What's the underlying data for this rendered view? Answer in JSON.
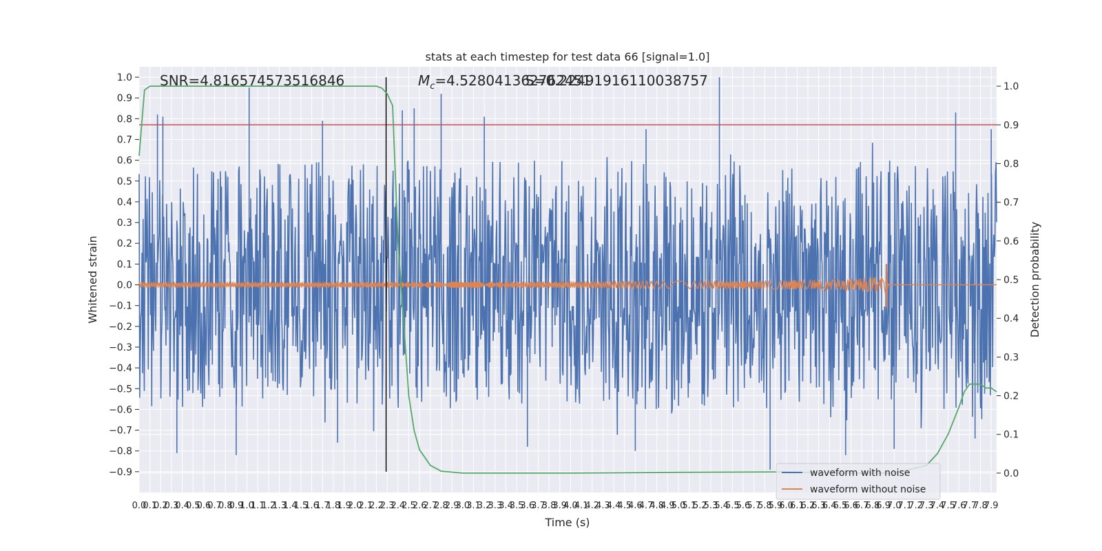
{
  "chart_data": {
    "type": "line",
    "title": "stats at each timestep for test data 66 [signal=1.0]",
    "xlabel": "Time (s)",
    "ylabel_left": "Whitened strain",
    "ylabel_right": "Detection probability",
    "xlim": [
      0.0,
      7.95
    ],
    "ylim_left": [
      -1.0,
      1.05
    ],
    "ylim_right": [
      -0.05,
      1.05
    ],
    "grid": true,
    "legend_position": "bottom-right",
    "x_ticks": [
      "0.0",
      "0.1",
      "0.2",
      "0.3",
      "0.4",
      "0.5",
      "0.6",
      "0.7",
      "0.8",
      "0.9",
      "1.0",
      "1.1",
      "1.2",
      "1.3",
      "1.4",
      "1.5",
      "1.6",
      "1.7",
      "1.8",
      "1.9",
      "2.0",
      "2.1",
      "2.2",
      "2.3",
      "2.4",
      "2.5",
      "2.6",
      "2.7",
      "2.8",
      "2.9",
      "3.0",
      "3.1",
      "3.2",
      "3.3",
      "3.4",
      "3.5",
      "3.6",
      "3.7",
      "3.8",
      "3.9",
      "4.0",
      "4.1",
      "4.2",
      "4.3",
      "4.4",
      "4.5",
      "4.6",
      "4.7",
      "4.8",
      "4.9",
      "5.0",
      "5.1",
      "5.2",
      "5.3",
      "5.4",
      "5.5",
      "5.6",
      "5.7",
      "5.8",
      "5.9",
      "6.0",
      "6.1",
      "6.2",
      "6.3",
      "6.4",
      "6.5",
      "6.6",
      "6.7",
      "6.8",
      "6.9",
      "7.0",
      "7.1",
      "7.2",
      "7.3",
      "7.4",
      "7.5",
      "7.6",
      "7.7",
      "7.8",
      "7.9"
    ],
    "y_ticks_left": [
      "1.0",
      "0.9",
      "0.8",
      "0.7",
      "0.6",
      "0.5",
      "0.4",
      "0.3",
      "0.2",
      "0.1",
      "0.0",
      "−0.1",
      "−0.2",
      "−0.3",
      "−0.4",
      "−0.5",
      "−0.6",
      "−0.7",
      "−0.8",
      "−0.9"
    ],
    "y_ticks_right": [
      "1.0",
      "0.9",
      "0.8",
      "0.7",
      "0.6",
      "0.5",
      "0.4",
      "0.3",
      "0.2",
      "0.1",
      "0.0"
    ],
    "annotations": {
      "snr": "SNR=4.816574573516846",
      "mc_symbol": "M",
      "mc_sub": "c",
      "mc_value": "=4.528041362762451",
      "q_text": "S=0.22491916110038757"
    },
    "series": [
      {
        "name": "waveform with noise",
        "color": "#4c72b0",
        "axis": "left",
        "envelope": {
          "upper_peaks": [
            [
              0.17,
              0.82
            ],
            [
              0.22,
              0.81
            ],
            [
              1.02,
              0.95
            ],
            [
              1.7,
              0.79
            ],
            [
              2.44,
              0.84
            ],
            [
              2.55,
              0.85
            ],
            [
              2.8,
              0.92
            ],
            [
              3.2,
              0.81
            ],
            [
              4.7,
              0.75
            ],
            [
              5.38,
              1.0
            ],
            [
              7.57,
              0.83
            ],
            [
              7.9,
              0.75
            ]
          ],
          "lower_peaks": [
            [
              0.35,
              -0.81
            ],
            [
              0.9,
              -0.82
            ],
            [
              1.84,
              -0.76
            ],
            [
              3.6,
              -0.78
            ],
            [
              4.6,
              -0.8
            ],
            [
              5.85,
              -0.89
            ],
            [
              6.55,
              -0.82
            ],
            [
              7.0,
              -0.79
            ],
            [
              7.75,
              -0.74
            ]
          ]
        }
      },
      {
        "name": "waveform without noise",
        "color": "#dd8452",
        "axis": "left",
        "chirp": {
          "start_amplitude": 0.013,
          "merger_time": 6.93,
          "peak_amplitude": 0.1,
          "ringdown_end": 6.96
        }
      },
      {
        "name": "",
        "color": "#55a868",
        "axis": "right",
        "x": [
          0.0,
          0.05,
          0.1,
          0.2,
          0.4,
          1.0,
          1.6,
          2.0,
          2.2,
          2.25,
          2.3,
          2.35,
          2.4,
          2.45,
          2.5,
          2.55,
          2.6,
          2.7,
          2.8,
          3.0,
          4.0,
          5.0,
          6.0,
          6.5,
          7.0,
          7.3,
          7.4,
          7.5,
          7.6,
          7.65,
          7.7,
          7.8,
          7.85,
          7.9,
          7.95
        ],
        "y": [
          0.82,
          0.99,
          1.0,
          1.0,
          1.0,
          1.0,
          1.0,
          1.0,
          1.0,
          0.995,
          0.98,
          0.95,
          0.6,
          0.4,
          0.2,
          0.11,
          0.06,
          0.02,
          0.005,
          0.0,
          0.0,
          0.002,
          0.003,
          0.0,
          0.0,
          0.02,
          0.05,
          0.1,
          0.17,
          0.21,
          0.23,
          0.23,
          0.22,
          0.22,
          0.21
        ]
      }
    ],
    "reference_lines": {
      "threshold": {
        "axis": "right",
        "y": 0.9,
        "color": "#c44e52"
      },
      "vertical": {
        "x": 2.29,
        "color": "#000000"
      }
    }
  },
  "legend": {
    "noise_label": "waveform with noise",
    "clean_label": "waveform without noise",
    "noise_color": "#4c72b0",
    "clean_color": "#dd8452"
  }
}
